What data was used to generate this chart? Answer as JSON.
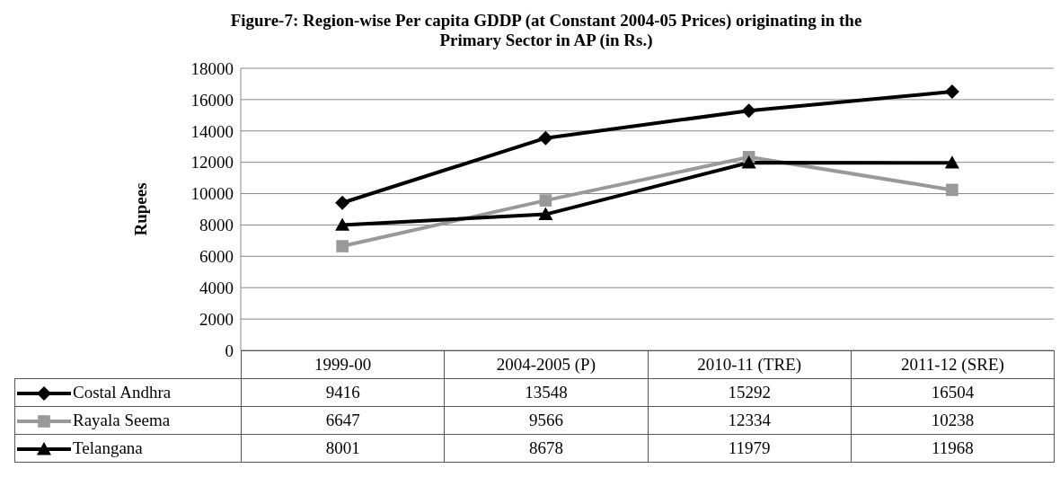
{
  "chart_data": {
    "type": "line",
    "title": "Figure-7: Region-wise Per capita GDDP (at Constant 2004-05 Prices) originating in the Primary Sector in AP (in Rs.)",
    "ylabel": "Rupees",
    "categories": [
      "1999-00",
      "2004-2005 (P)",
      "2010-11 (TRE)",
      "2011-12 (SRE)"
    ],
    "series": [
      {
        "name": "Costal Andhra",
        "color": "#000000",
        "marker": "diamond",
        "values": [
          9416,
          13548,
          15292,
          16504
        ]
      },
      {
        "name": "Rayala Seema",
        "color": "#999999",
        "marker": "square",
        "values": [
          6647,
          9566,
          12334,
          10238
        ]
      },
      {
        "name": "Telangana",
        "color": "#000000",
        "marker": "triangle",
        "values": [
          8001,
          8678,
          11979,
          11968
        ]
      }
    ],
    "ylim": [
      0,
      18000
    ],
    "yticks": [
      0,
      2000,
      4000,
      6000,
      8000,
      10000,
      12000,
      14000,
      16000,
      18000
    ],
    "grid": "y",
    "legend": "bottom",
    "data_labels": true
  }
}
